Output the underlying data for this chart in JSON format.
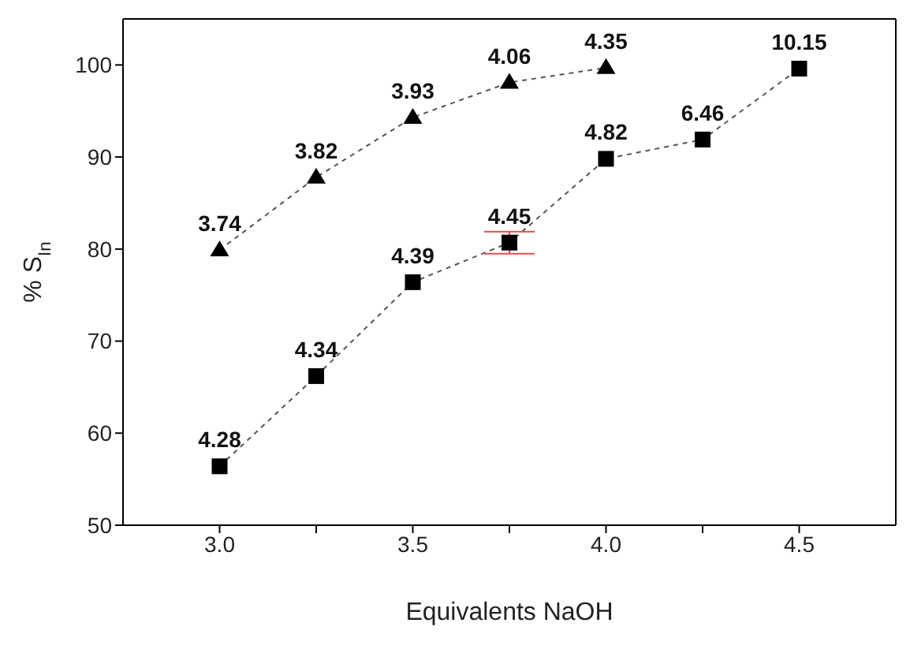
{
  "chart_data": {
    "type": "line",
    "xlabel": "Equivalents NaOH",
    "ylabel": "% S$_{In}$",
    "xlim": [
      2.75,
      4.75
    ],
    "xticks": [
      {
        "value": 3,
        "label": "3.0"
      },
      {
        "value": 3.25,
        "label": null
      },
      {
        "value": 3.5,
        "label": "3.5"
      },
      {
        "value": 3.75,
        "label": null
      },
      {
        "value": 4,
        "label": "4.0"
      },
      {
        "value": 4.25,
        "label": null
      },
      {
        "value": 4.5,
        "label": "4.5"
      }
    ],
    "ylim": [
      50,
      105
    ],
    "yticks": [
      50,
      60,
      70,
      80,
      90,
      100
    ],
    "grid": false,
    "line_style": "dashed",
    "series": [
      {
        "color": "#000000",
        "marker": "triangle",
        "x": [
          3.0,
          3.25,
          3.5,
          3.75,
          4.0
        ],
        "values": [
          79.9,
          87.8,
          94.3,
          98.1,
          99.7
        ],
        "errors": [
          null,
          null,
          null,
          null,
          null
        ]
      },
      {
        "color": "#000000",
        "marker": "square",
        "x": [
          3.0,
          3.25,
          3.5,
          3.75,
          4.0,
          4.25,
          4.5
        ],
        "values": [
          56.4,
          66.2,
          76.4,
          80.7,
          89.8,
          91.9,
          99.6
        ],
        "errors": [
          null,
          null,
          null,
          1.2,
          null,
          null,
          null
        ]
      }
    ],
    "annotations": [
      {
        "text": "3.74",
        "x": 3.0,
        "y": 79.9
      },
      {
        "text": "3.82",
        "x": 3.25,
        "y": 87.8
      },
      {
        "text": "3.93",
        "x": 3.5,
        "y": 94.3
      },
      {
        "text": "4.06",
        "x": 3.75,
        "y": 98.1
      },
      {
        "text": "4.35",
        "x": 4.0,
        "y": 99.7
      },
      {
        "text": "4.28",
        "x": 3.0,
        "y": 56.4
      },
      {
        "text": "4.34",
        "x": 3.25,
        "y": 66.2
      },
      {
        "text": "4.39",
        "x": 3.5,
        "y": 76.4
      },
      {
        "text": "4.45",
        "x": 3.75,
        "y": 80.7
      },
      {
        "text": "4.82",
        "x": 4.0,
        "y": 89.8
      },
      {
        "text": "6.46",
        "x": 4.25,
        "y": 91.9
      },
      {
        "text": "10.15",
        "x": 4.5,
        "y": 99.6
      }
    ]
  }
}
